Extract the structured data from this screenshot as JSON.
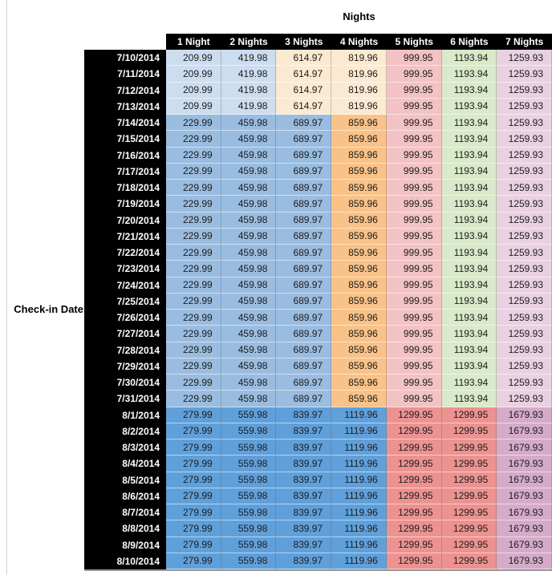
{
  "chart_data": {
    "type": "table",
    "title": "Nights",
    "row_axis_label": "Check-in Date",
    "columns": [
      "1 Night",
      "2 Nights",
      "3 Nights",
      "4 Nights",
      "5 Nights",
      "6 Nights",
      "7 Nights"
    ],
    "colors": {
      "pale_blue": "#CDDDF0",
      "pale_orange": "#FCE9D2",
      "medium_blue": "#9ABCE0",
      "orange": "#F9C288",
      "pink": "#F2C2C4",
      "green": "#D9E9C9",
      "lavender": "#E9D1E1",
      "strong_blue": "#60A0DA",
      "salmon": "#EC9290",
      "mauve": "#D5ABC9",
      "header_bg": "#000000",
      "header_text": "#FFFFFF"
    },
    "bands": {
      "early_july": [
        "pale_blue",
        "pale_blue",
        "pale_orange",
        "pale_orange",
        "pink",
        "green",
        "lavender"
      ],
      "mid_july": [
        "medium_blue",
        "medium_blue",
        "medium_blue",
        "orange",
        "pink",
        "green",
        "lavender"
      ],
      "august": [
        "strong_blue",
        "strong_blue",
        "strong_blue",
        "strong_blue",
        "salmon",
        "salmon",
        "mauve"
      ]
    },
    "rows": [
      {
        "date": "7/10/2014",
        "band": "early_july",
        "values": [
          "209.99",
          "419.98",
          "614.97",
          "819.96",
          "999.95",
          "1193.94",
          "1259.93"
        ]
      },
      {
        "date": "7/11/2014",
        "band": "early_july",
        "values": [
          "209.99",
          "419.98",
          "614.97",
          "819.96",
          "999.95",
          "1193.94",
          "1259.93"
        ]
      },
      {
        "date": "7/12/2014",
        "band": "early_july",
        "values": [
          "209.99",
          "419.98",
          "614.97",
          "819.96",
          "999.95",
          "1193.94",
          "1259.93"
        ]
      },
      {
        "date": "7/13/2014",
        "band": "early_july",
        "values": [
          "209.99",
          "419.98",
          "614.97",
          "819.96",
          "999.95",
          "1193.94",
          "1259.93"
        ]
      },
      {
        "date": "7/14/2014",
        "band": "mid_july",
        "values": [
          "229.99",
          "459.98",
          "689.97",
          "859.96",
          "999.95",
          "1193.94",
          "1259.93"
        ]
      },
      {
        "date": "7/15/2014",
        "band": "mid_july",
        "values": [
          "229.99",
          "459.98",
          "689.97",
          "859.96",
          "999.95",
          "1193.94",
          "1259.93"
        ]
      },
      {
        "date": "7/16/2014",
        "band": "mid_july",
        "values": [
          "229.99",
          "459.98",
          "689.97",
          "859.96",
          "999.95",
          "1193.94",
          "1259.93"
        ]
      },
      {
        "date": "7/17/2014",
        "band": "mid_july",
        "values": [
          "229.99",
          "459.98",
          "689.97",
          "859.96",
          "999.95",
          "1193.94",
          "1259.93"
        ]
      },
      {
        "date": "7/18/2014",
        "band": "mid_july",
        "values": [
          "229.99",
          "459.98",
          "689.97",
          "859.96",
          "999.95",
          "1193.94",
          "1259.93"
        ]
      },
      {
        "date": "7/19/2014",
        "band": "mid_july",
        "values": [
          "229.99",
          "459.98",
          "689.97",
          "859.96",
          "999.95",
          "1193.94",
          "1259.93"
        ]
      },
      {
        "date": "7/20/2014",
        "band": "mid_july",
        "values": [
          "229.99",
          "459.98",
          "689.97",
          "859.96",
          "999.95",
          "1193.94",
          "1259.93"
        ]
      },
      {
        "date": "7/21/2014",
        "band": "mid_july",
        "values": [
          "229.99",
          "459.98",
          "689.97",
          "859.96",
          "999.95",
          "1193.94",
          "1259.93"
        ]
      },
      {
        "date": "7/22/2014",
        "band": "mid_july",
        "values": [
          "229.99",
          "459.98",
          "689.97",
          "859.96",
          "999.95",
          "1193.94",
          "1259.93"
        ]
      },
      {
        "date": "7/23/2014",
        "band": "mid_july",
        "values": [
          "229.99",
          "459.98",
          "689.97",
          "859.96",
          "999.95",
          "1193.94",
          "1259.93"
        ]
      },
      {
        "date": "7/24/2014",
        "band": "mid_july",
        "values": [
          "229.99",
          "459.98",
          "689.97",
          "859.96",
          "999.95",
          "1193.94",
          "1259.93"
        ]
      },
      {
        "date": "7/25/2014",
        "band": "mid_july",
        "values": [
          "229.99",
          "459.98",
          "689.97",
          "859.96",
          "999.95",
          "1193.94",
          "1259.93"
        ]
      },
      {
        "date": "7/26/2014",
        "band": "mid_july",
        "values": [
          "229.99",
          "459.98",
          "689.97",
          "859.96",
          "999.95",
          "1193.94",
          "1259.93"
        ]
      },
      {
        "date": "7/27/2014",
        "band": "mid_july",
        "values": [
          "229.99",
          "459.98",
          "689.97",
          "859.96",
          "999.95",
          "1193.94",
          "1259.93"
        ]
      },
      {
        "date": "7/28/2014",
        "band": "mid_july",
        "values": [
          "229.99",
          "459.98",
          "689.97",
          "859.96",
          "999.95",
          "1193.94",
          "1259.93"
        ]
      },
      {
        "date": "7/29/2014",
        "band": "mid_july",
        "values": [
          "229.99",
          "459.98",
          "689.97",
          "859.96",
          "999.95",
          "1193.94",
          "1259.93"
        ]
      },
      {
        "date": "7/30/2014",
        "band": "mid_july",
        "values": [
          "229.99",
          "459.98",
          "689.97",
          "859.96",
          "999.95",
          "1193.94",
          "1259.93"
        ]
      },
      {
        "date": "7/31/2014",
        "band": "mid_july",
        "values": [
          "229.99",
          "459.98",
          "689.97",
          "859.96",
          "999.95",
          "1193.94",
          "1259.93"
        ]
      },
      {
        "date": "8/1/2014",
        "band": "august",
        "values": [
          "279.99",
          "559.98",
          "839.97",
          "1119.96",
          "1299.95",
          "1299.95",
          "1679.93"
        ]
      },
      {
        "date": "8/2/2014",
        "band": "august",
        "values": [
          "279.99",
          "559.98",
          "839.97",
          "1119.96",
          "1299.95",
          "1299.95",
          "1679.93"
        ]
      },
      {
        "date": "8/3/2014",
        "band": "august",
        "values": [
          "279.99",
          "559.98",
          "839.97",
          "1119.96",
          "1299.95",
          "1299.95",
          "1679.93"
        ]
      },
      {
        "date": "8/4/2014",
        "band": "august",
        "values": [
          "279.99",
          "559.98",
          "839.97",
          "1119.96",
          "1299.95",
          "1299.95",
          "1679.93"
        ]
      },
      {
        "date": "8/5/2014",
        "band": "august",
        "values": [
          "279.99",
          "559.98",
          "839.97",
          "1119.96",
          "1299.95",
          "1299.95",
          "1679.93"
        ]
      },
      {
        "date": "8/6/2014",
        "band": "august",
        "values": [
          "279.99",
          "559.98",
          "839.97",
          "1119.96",
          "1299.95",
          "1299.95",
          "1679.93"
        ]
      },
      {
        "date": "8/7/2014",
        "band": "august",
        "values": [
          "279.99",
          "559.98",
          "839.97",
          "1119.96",
          "1299.95",
          "1299.95",
          "1679.93"
        ]
      },
      {
        "date": "8/8/2014",
        "band": "august",
        "values": [
          "279.99",
          "559.98",
          "839.97",
          "1119.96",
          "1299.95",
          "1299.95",
          "1679.93"
        ]
      },
      {
        "date": "8/9/2014",
        "band": "august",
        "values": [
          "279.99",
          "559.98",
          "839.97",
          "1119.96",
          "1299.95",
          "1299.95",
          "1679.93"
        ]
      },
      {
        "date": "8/10/2014",
        "band": "august",
        "values": [
          "279.99",
          "559.98",
          "839.97",
          "1119.96",
          "1299.95",
          "1299.95",
          "1679.93"
        ]
      }
    ]
  }
}
